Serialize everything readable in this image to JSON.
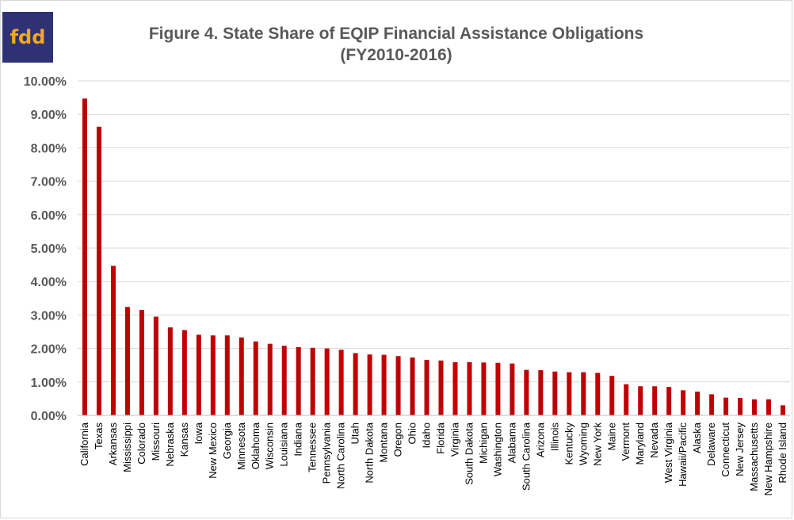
{
  "logo": {
    "text": "fdd",
    "bg_color": "#2e3173",
    "text_color": "#f5a623"
  },
  "chart_data": {
    "type": "bar",
    "title_line1": "Figure 4. State Share of EQIP Financial Assistance Obligations",
    "title_line2": "(FY2010-2016)",
    "xlabel": "",
    "ylabel": "",
    "ylim": [
      0,
      10
    ],
    "yticks": [
      "0.00%",
      "1.00%",
      "2.00%",
      "3.00%",
      "4.00%",
      "5.00%",
      "6.00%",
      "7.00%",
      "8.00%",
      "9.00%",
      "10.00%"
    ],
    "grid": true,
    "legend": "none",
    "bar_color": "#c00000",
    "categories": [
      "California",
      "Texas",
      "Arkansas",
      "Mississippi",
      "Colorado",
      "Missouri",
      "Nebraska",
      "Kansas",
      "Iowa",
      "New Mexico",
      "Georgia",
      "Minnesota",
      "Oklahoma",
      "Wisconsin",
      "Louisiana",
      "Indiana",
      "Tennessee",
      "Pennsylvania",
      "North Carolina",
      "Utah",
      "North Dakota",
      "Montana",
      "Oregon",
      "Ohio",
      "Idaho",
      "Florida",
      "Virginia",
      "South Dakota",
      "Michigan",
      "Washington",
      "Alabama",
      "South Carolina",
      "Arizona",
      "Illinois",
      "Kentucky",
      "Wyoming",
      "New York",
      "Maine",
      "Vermont",
      "Maryland",
      "Nevada",
      "West Virginia",
      "Hawaii/Pacific",
      "Alaska",
      "Delaware",
      "Connecticut",
      "New Jersey",
      "Massachusetts",
      "New Hampshire",
      "Rhode Island"
    ],
    "values": [
      9.47,
      8.63,
      4.47,
      3.24,
      3.15,
      2.95,
      2.63,
      2.55,
      2.41,
      2.39,
      2.39,
      2.33,
      2.21,
      2.14,
      2.08,
      2.04,
      2.02,
      2.0,
      1.96,
      1.86,
      1.82,
      1.81,
      1.77,
      1.73,
      1.66,
      1.64,
      1.59,
      1.59,
      1.58,
      1.57,
      1.55,
      1.36,
      1.35,
      1.31,
      1.29,
      1.29,
      1.27,
      1.18,
      0.93,
      0.87,
      0.87,
      0.85,
      0.75,
      0.71,
      0.63,
      0.53,
      0.52,
      0.48,
      0.48,
      0.3
    ]
  }
}
